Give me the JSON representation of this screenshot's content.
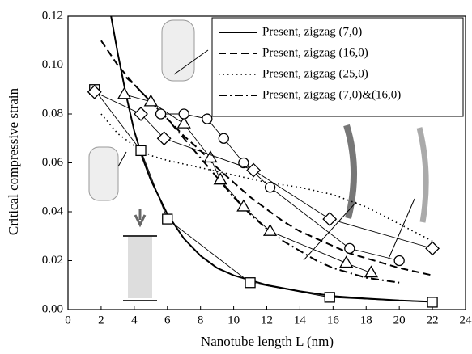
{
  "chart_data": {
    "type": "line",
    "x_label": "Nanotube length L (nm)",
    "y_label": "Critical compressive strain",
    "xlim": [
      0,
      24
    ],
    "ylim": [
      0,
      0.12
    ],
    "xticks": [
      0,
      2,
      4,
      6,
      8,
      10,
      12,
      14,
      16,
      18,
      20,
      22,
      24
    ],
    "yticks": [
      {
        "value": 0,
        "label": "0.00"
      },
      {
        "value": 0.02,
        "label": "0.02"
      },
      {
        "value": 0.04,
        "label": "0.04"
      },
      {
        "value": 0.06,
        "label": "0.06"
      },
      {
        "value": 0.08,
        "label": "0.08"
      },
      {
        "value": 0.1,
        "label": "0.10"
      },
      {
        "value": 0.12,
        "label": "0.12"
      }
    ],
    "legend": "upper right",
    "series": [
      {
        "name": "Present, zigzag (7,0)",
        "color": "#000000",
        "linestyle": "solid",
        "x": [
          2.6,
          3,
          3.5,
          4,
          4.5,
          5,
          6,
          7,
          8,
          9,
          10,
          11,
          12,
          14,
          16,
          18,
          20,
          22
        ],
        "values": [
          0.12,
          0.105,
          0.088,
          0.073,
          0.062,
          0.053,
          0.039,
          0.029,
          0.022,
          0.017,
          0.014,
          0.012,
          0.01,
          0.0075,
          0.0055,
          0.0045,
          0.0037,
          0.0032
        ]
      },
      {
        "name": "Present, zigzag (16,0)",
        "color": "#000000",
        "linestyle": "dashed",
        "x": [
          2,
          3,
          4,
          5,
          6,
          7,
          8,
          9,
          10,
          11,
          12,
          13,
          14,
          15,
          16,
          17,
          18,
          20,
          22
        ],
        "values": [
          0.11,
          0.1,
          0.092,
          0.085,
          0.078,
          0.071,
          0.065,
          0.058,
          0.052,
          0.046,
          0.041,
          0.036,
          0.032,
          0.029,
          0.026,
          0.023,
          0.021,
          0.017,
          0.014
        ]
      },
      {
        "name": "Present, zigzag (25,0)",
        "color": "#000000",
        "linestyle": "dotted",
        "x": [
          2,
          3,
          4,
          5,
          6,
          8,
          10,
          12,
          14,
          16,
          18,
          20,
          22
        ],
        "values": [
          0.08,
          0.072,
          0.067,
          0.063,
          0.061,
          0.058,
          0.055,
          0.052,
          0.05,
          0.047,
          0.042,
          0.035,
          0.028
        ]
      },
      {
        "name": "Present, zigzag (7,0)&(16,0)",
        "color": "#000000",
        "linestyle": "dashdot",
        "x": [
          3.5,
          4,
          5,
          6,
          7,
          8,
          9,
          10,
          11,
          12,
          13,
          14,
          15,
          16,
          17,
          18,
          19,
          20
        ],
        "values": [
          0.095,
          0.092,
          0.085,
          0.078,
          0.07,
          0.062,
          0.054,
          0.046,
          0.039,
          0.033,
          0.028,
          0.024,
          0.02,
          0.017,
          0.015,
          0.013,
          0.012,
          0.011
        ]
      },
      {
        "color": "#000000",
        "linestyle": "thin",
        "marker": "square",
        "x": [
          1.6,
          4.4,
          6.0,
          11.0,
          15.8,
          22.0
        ],
        "values": [
          0.09,
          0.065,
          0.037,
          0.011,
          0.005,
          0.003
        ]
      },
      {
        "color": "#000000",
        "linestyle": "thin",
        "marker": "triangle",
        "x": [
          3.4,
          5.0,
          7.0,
          8.6,
          9.2,
          10.6,
          12.2,
          16.8,
          18.3
        ],
        "values": [
          0.088,
          0.085,
          0.076,
          0.062,
          0.053,
          0.042,
          0.032,
          0.019,
          0.015
        ]
      },
      {
        "color": "#000000",
        "linestyle": "thin",
        "marker": "circle",
        "x": [
          5.6,
          7.0,
          8.4,
          9.4,
          10.6,
          12.2,
          17.0,
          20.0
        ],
        "values": [
          0.08,
          0.08,
          0.078,
          0.07,
          0.06,
          0.05,
          0.025,
          0.02
        ]
      },
      {
        "color": "#000000",
        "linestyle": "thin",
        "marker": "diamond",
        "x": [
          1.6,
          4.4,
          5.8,
          11.2,
          15.8,
          22.0
        ],
        "values": [
          0.089,
          0.08,
          0.07,
          0.057,
          0.037,
          0.025
        ]
      }
    ]
  }
}
